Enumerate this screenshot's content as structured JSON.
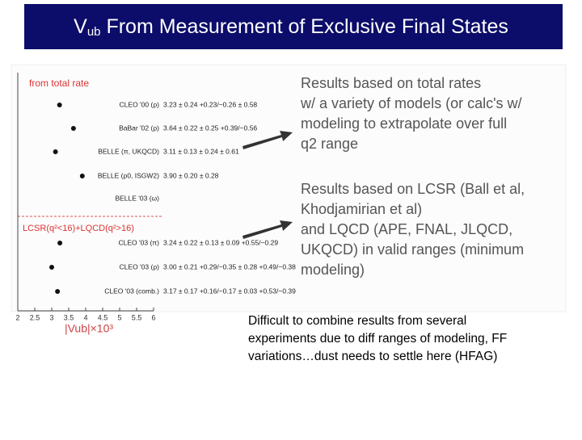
{
  "title": {
    "prefix": "V",
    "sub": "ub",
    "rest": " From Measurement of Exclusive Final States"
  },
  "plot": {
    "section1": "from total rate",
    "section2": "LCSR(q²<16)+LQCD(q²>16)",
    "xlabel": "|Vub|×10³",
    "xlim": [
      2,
      6
    ],
    "xticks": [
      2,
      2.5,
      3,
      3.5,
      4,
      4.5,
      5,
      5.5,
      6
    ],
    "rows": [
      {
        "label": "CLEO '00 (ρ)",
        "value": 3.23,
        "value_label": "3.23 ± 0.24 +0.23/−0.26 ± 0.58"
      },
      {
        "label": "BaBar '02 (ρ)",
        "value": 3.64,
        "value_label": "3.64 ± 0.22 ± 0.25 +0.39/−0.56"
      },
      {
        "label": "BELLE (π, UKQCD)",
        "value": 3.11,
        "value_label": "3.11 ± 0.13 ± 0.24 ± 0.61"
      },
      {
        "label": "BELLE (ρ0, ISGW2)",
        "value": 3.9,
        "value_label": "3.90 ± 0.20 ± 0.28"
      },
      {
        "label": "BELLE '03 (ω)"
      },
      {
        "label": "CLEO '03 (π)",
        "value": 3.24,
        "value_label": "3.24 ± 0.22 ± 0.13 ± 0.09 +0.55/−0.29"
      },
      {
        "label": "CLEO '03 (ρ)",
        "value": 3.0,
        "value_label": "3.00 ± 0.21 +0.29/−0.35 ± 0.28 +0.49/−0.38"
      },
      {
        "label": "CLEO '03 (comb.)",
        "value": 3.17,
        "value_label": "3.17 ± 0.17 +0.16/−0.17 ± 0.03 +0.53/−0.39"
      }
    ]
  },
  "notes": [
    {
      "lines": [
        "Results based on total rates",
        "w/ a variety of models (or calc's w/",
        "modeling to extrapolate over full",
        "q2 range"
      ]
    },
    {
      "lines": [
        "Results based on LCSR (Ball et al,",
        "Khodjamirian et al)",
        "and LQCD (APE, FNAL, JLQCD,",
        "UKQCD) in valid ranges (minimum",
        "modeling)"
      ]
    }
  ],
  "comment": [
    "Difficult to combine results from several",
    "experiments due to diff ranges of modeling, FF",
    "variations…dust needs to settle here  (HFAG)"
  ]
}
